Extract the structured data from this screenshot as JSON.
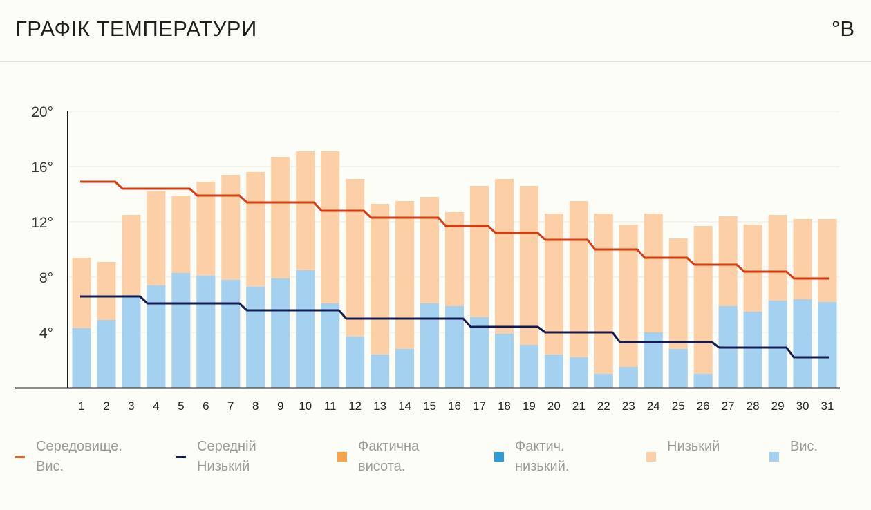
{
  "header": {
    "title": "ГРАФІК ТЕМПЕРАТУРИ",
    "unit": "°В"
  },
  "colors": {
    "avg_high_line": "#d93a0f",
    "avg_low_line": "#141a52",
    "low_bar": "#fccfa6",
    "high_bar": "#a4d1ef",
    "grid": "#ebebe3",
    "axis": "#1a1a1a"
  },
  "legend": [
    {
      "label": "Середовище.\nВис.",
      "kind": "line",
      "color": "#e8622a"
    },
    {
      "label": "Середній\nНизький",
      "kind": "line",
      "color": "#141a52"
    },
    {
      "label": "Фактична\nвисота.",
      "kind": "box",
      "color": "#f7a54c"
    },
    {
      "label": "Фактич.\nнизький.",
      "kind": "box",
      "color": "#2e9bd8"
    },
    {
      "label": "Низький",
      "kind": "box",
      "color": "#fccfa6"
    },
    {
      "label": "Вис.",
      "kind": "box",
      "color": "#a4d1ef"
    }
  ],
  "chart_data": {
    "type": "bar",
    "title": "ГРАФІК ТЕМПЕРАТУРИ",
    "ylim": [
      0,
      20
    ],
    "yticks": [
      4,
      8,
      12,
      16,
      20
    ],
    "ytick_labels": [
      "4°",
      "8°",
      "12°",
      "16°",
      "20°"
    ],
    "categories": [
      "1",
      "2",
      "3",
      "4",
      "5",
      "6",
      "7",
      "8",
      "9",
      "10",
      "11",
      "12",
      "13",
      "14",
      "15",
      "16",
      "17",
      "18",
      "19",
      "20",
      "21",
      "22",
      "23",
      "24",
      "25",
      "26",
      "27",
      "28",
      "29",
      "30",
      "31"
    ],
    "series": [
      {
        "name": "Низький",
        "kind": "bar",
        "values": [
          9.4,
          9.1,
          12.5,
          14.2,
          13.9,
          14.9,
          15.4,
          15.6,
          16.7,
          17.1,
          17.1,
          15.1,
          13.3,
          13.5,
          13.8,
          12.7,
          14.6,
          15.1,
          14.6,
          12.6,
          13.5,
          12.6,
          11.8,
          12.6,
          10.8,
          11.7,
          12.4,
          11.8,
          12.5,
          12.2,
          12.2
        ]
      },
      {
        "name": "Вис.",
        "kind": "bar",
        "values": [
          4.3,
          4.9,
          6.7,
          7.4,
          8.3,
          8.1,
          7.8,
          7.3,
          7.9,
          8.5,
          6.1,
          3.7,
          2.4,
          2.8,
          6.1,
          5.9,
          5.1,
          3.9,
          3.1,
          2.4,
          2.2,
          1.0,
          1.5,
          4.0,
          2.8,
          1.0,
          5.9,
          5.5,
          6.3,
          6.4,
          6.2
        ]
      },
      {
        "name": "Середовище. Вис.",
        "kind": "step-line",
        "values": [
          14.9,
          14.9,
          14.4,
          14.4,
          14.4,
          13.9,
          13.9,
          13.4,
          13.4,
          13.4,
          12.8,
          12.8,
          12.3,
          12.3,
          12.3,
          11.7,
          11.7,
          11.2,
          11.2,
          10.7,
          10.7,
          10.0,
          10.0,
          9.4,
          9.4,
          8.9,
          8.9,
          8.4,
          8.4,
          7.9,
          7.9
        ]
      },
      {
        "name": "Середній Низький",
        "kind": "step-line",
        "values": [
          6.6,
          6.6,
          6.6,
          6.1,
          6.1,
          6.1,
          6.1,
          5.6,
          5.6,
          5.6,
          5.6,
          5.0,
          5.0,
          5.0,
          5.0,
          5.0,
          4.4,
          4.4,
          4.4,
          4.0,
          4.0,
          4.0,
          3.3,
          3.3,
          3.3,
          3.3,
          2.9,
          2.9,
          2.9,
          2.2,
          2.2
        ]
      }
    ]
  }
}
